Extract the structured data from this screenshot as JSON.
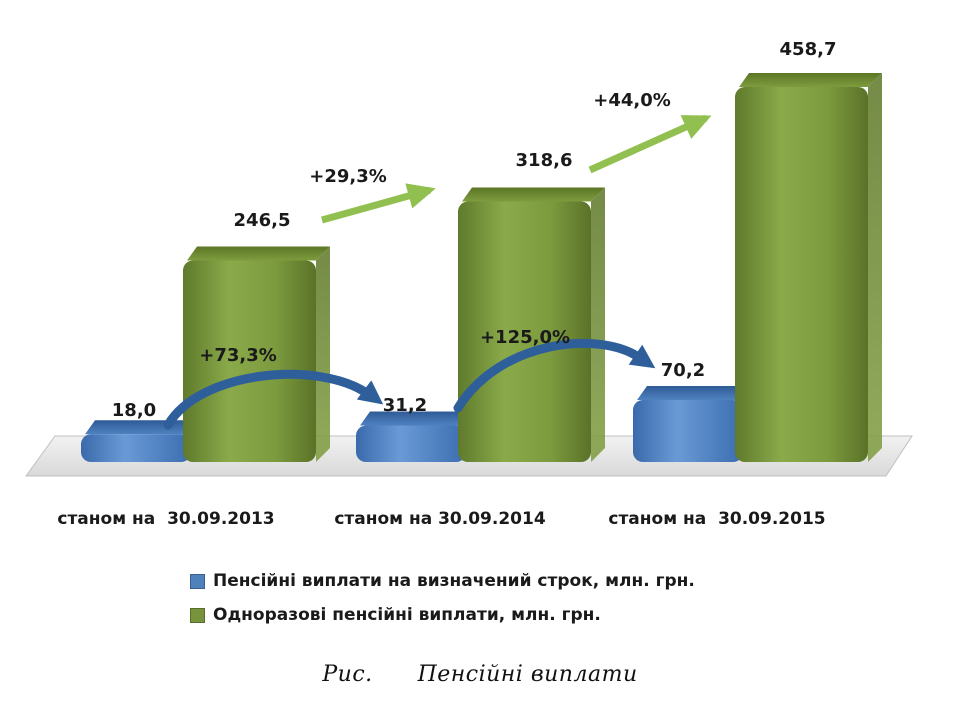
{
  "chart_data": {
    "type": "bar",
    "categories": [
      "станом на  30.09.2013",
      "станом на 30.09.2014",
      "станом на  30.09.2015"
    ],
    "series": [
      {
        "name": "Пенсійні виплати на визначений строк, млн. грн.",
        "values": [
          18.0,
          31.2,
          70.2
        ],
        "labels": [
          "18,0",
          "31,2",
          "70,2"
        ],
        "color": "#4f81bd"
      },
      {
        "name": "Одноразові пенсійні виплати, млн. грн.",
        "values": [
          246.5,
          318.6,
          458.7
        ],
        "labels": [
          "246,5",
          "318,6",
          "458,7"
        ],
        "color": "#77933c"
      }
    ],
    "annotations": {
      "series1_growth": [
        "+73,3%",
        "+125,0%"
      ],
      "series2_growth": [
        "+29,3%",
        "+44,0%"
      ],
      "series1_arrow_color": "#2e5f9a",
      "series2_arrow_color": "#92c050"
    },
    "legend_position": "bottom",
    "grid": false,
    "title": "",
    "xlabel": "",
    "ylabel": ""
  },
  "caption": "Рис.      Пенсійні виплати"
}
